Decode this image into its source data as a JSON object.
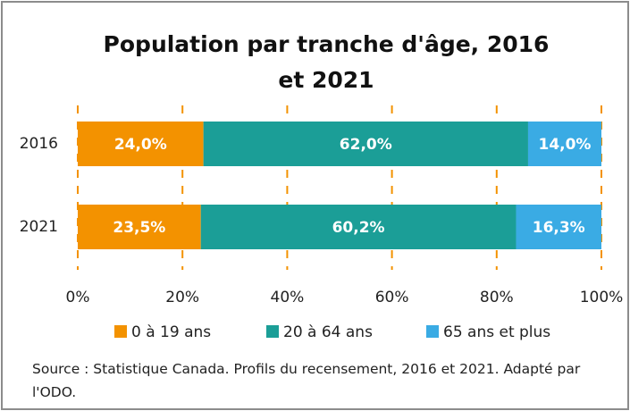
{
  "chart_data": {
    "type": "stacked_barh",
    "title": "Population par tranche d'âge, 2016 et 2021",
    "categories": [
      "2016",
      "2021"
    ],
    "series": [
      {
        "name": "0 à 19 ans",
        "color": "#f39200",
        "values": [
          24.0,
          23.5
        ],
        "value_labels": [
          "24,0%",
          "23,5%"
        ]
      },
      {
        "name": "20 à 64 ans",
        "color": "#1b9e97",
        "values": [
          62.0,
          60.2
        ],
        "value_labels": [
          "62,0%",
          "60,2%"
        ]
      },
      {
        "name": "65 ans et plus",
        "color": "#3aabe4",
        "values": [
          14.0,
          16.3
        ],
        "value_labels": [
          "14,0%",
          "16,3%"
        ]
      }
    ],
    "xlim": [
      0,
      100
    ],
    "xticks": [
      {
        "value": 0,
        "label": "0%"
      },
      {
        "value": 20,
        "label": "20%"
      },
      {
        "value": 40,
        "label": "40%"
      },
      {
        "value": 60,
        "label": "60%"
      },
      {
        "value": 80,
        "label": "80%"
      },
      {
        "value": 100,
        "label": "100%"
      }
    ],
    "grid": true,
    "grid_color": "#f39200",
    "legend": "bottom",
    "source": "Source : Statistique Canada. Profils du recensement, 2016 et 2021. Adapté par l'ODO."
  }
}
